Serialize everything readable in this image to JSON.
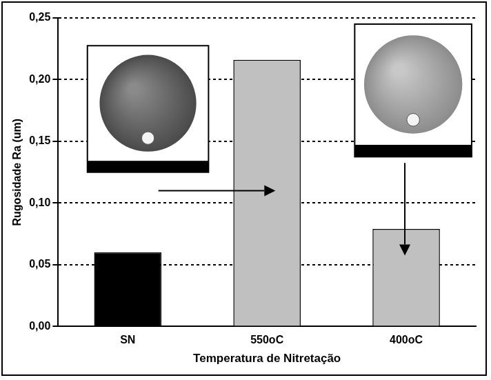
{
  "chart_data": {
    "type": "bar",
    "categories": [
      "SN",
      "550oC",
      "400oC"
    ],
    "values": [
      0.06,
      0.216,
      0.079
    ],
    "colors": [
      "#000000",
      "#c0c0c0",
      "#c0c0c0"
    ],
    "x_label": "Temperatura de Nitretação",
    "y_label": "Rugosidade Ra (um)",
    "ylim": [
      0,
      0.25
    ],
    "yticks": [
      {
        "value": 0,
        "label": "0,00"
      },
      {
        "value": 0.05,
        "label": "0,05"
      },
      {
        "value": 0.1,
        "label": "0,10"
      },
      {
        "value": 0.15,
        "label": "0,15"
      },
      {
        "value": 0.2,
        "label": "0,20"
      },
      {
        "value": 0.25,
        "label": "0,25"
      }
    ],
    "grid": true
  }
}
